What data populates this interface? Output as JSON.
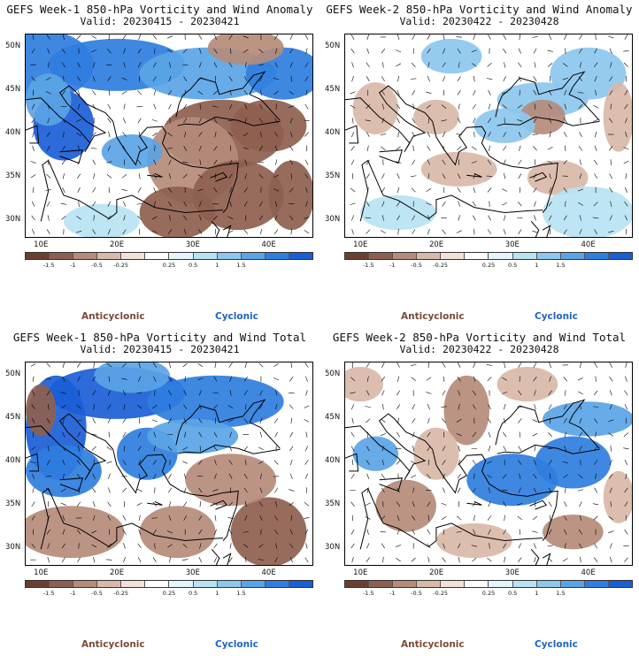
{
  "chart_data": [
    {
      "type": "heatmap",
      "title": "GEFS Week-1 850-hPa Vorticity and Wind Anomaly",
      "subtitle": "Valid: 20230415 - 20230421",
      "xticks": [
        "10E",
        "20E",
        "30E",
        "40E"
      ],
      "yticks": [
        "50N",
        "45N",
        "40N",
        "35N",
        "30N"
      ],
      "xlim": [
        8,
        46
      ],
      "ylim": [
        28,
        51.5
      ],
      "colorbar_ticks": [
        "-1.5",
        "-1",
        "-0.5",
        "-0.25",
        "0.25",
        "0.5",
        "1",
        "1.5"
      ],
      "legend_neg": "Anticyclonic",
      "legend_pos": "Cyclonic"
    },
    {
      "type": "heatmap",
      "title": "GEFS Week-2 850-hPa Vorticity and Wind Anomaly",
      "subtitle": "Valid: 20230422 - 20230428",
      "xticks": [
        "10E",
        "20E",
        "30E",
        "40E"
      ],
      "yticks": [
        "50N",
        "45N",
        "40N",
        "35N",
        "30N"
      ],
      "xlim": [
        8,
        46
      ],
      "ylim": [
        28,
        51.5
      ],
      "colorbar_ticks": [
        "-1.5",
        "-1",
        "-0.5",
        "-0.25",
        "0.25",
        "0.5",
        "1",
        "1.5"
      ],
      "legend_neg": "Anticyclonic",
      "legend_pos": "Cyclonic"
    },
    {
      "type": "heatmap",
      "title": "GEFS Week-1 850-hPa Vorticity and Wind Total",
      "subtitle": "Valid: 20230415 - 20230421",
      "xticks": [
        "10E",
        "20E",
        "30E",
        "40E"
      ],
      "yticks": [
        "50N",
        "45N",
        "40N",
        "35N",
        "30N"
      ],
      "xlim": [
        8,
        46
      ],
      "ylim": [
        28,
        51.5
      ],
      "colorbar_ticks": [
        "-1.5",
        "-1",
        "-0.5",
        "-0.25",
        "0.25",
        "0.5",
        "1",
        "1.5"
      ],
      "legend_neg": "Anticyclonic",
      "legend_pos": "Cyclonic"
    },
    {
      "type": "heatmap",
      "title": "GEFS Week-2 850-hPa Vorticity and Wind Total",
      "subtitle": "Valid: 20230422 - 20230428",
      "xticks": [
        "10E",
        "20E",
        "30E",
        "40E"
      ],
      "yticks": [
        "50N",
        "45N",
        "40N",
        "35N",
        "30N"
      ],
      "xlim": [
        8,
        46
      ],
      "ylim": [
        28,
        51.5
      ],
      "colorbar_ticks": [
        "-1.5",
        "-1",
        "-0.5",
        "-0.25",
        "0.25",
        "0.5",
        "1",
        "1.5"
      ],
      "legend_neg": "Anticyclonic",
      "legend_pos": "Cyclonic"
    }
  ],
  "colorbar_colors": [
    "#6b3f2f",
    "#8e5f4f",
    "#b58b79",
    "#d9b9a8",
    "#f1e1d8",
    "#ffffff",
    "#e3f6fb",
    "#b7e3f2",
    "#8cc7ee",
    "#5aa4e6",
    "#2f7ee0",
    "#1a5ed6"
  ],
  "legend_colors": {
    "anticyclonic": "#7a4a38",
    "cyclonic": "#1f63c6"
  }
}
